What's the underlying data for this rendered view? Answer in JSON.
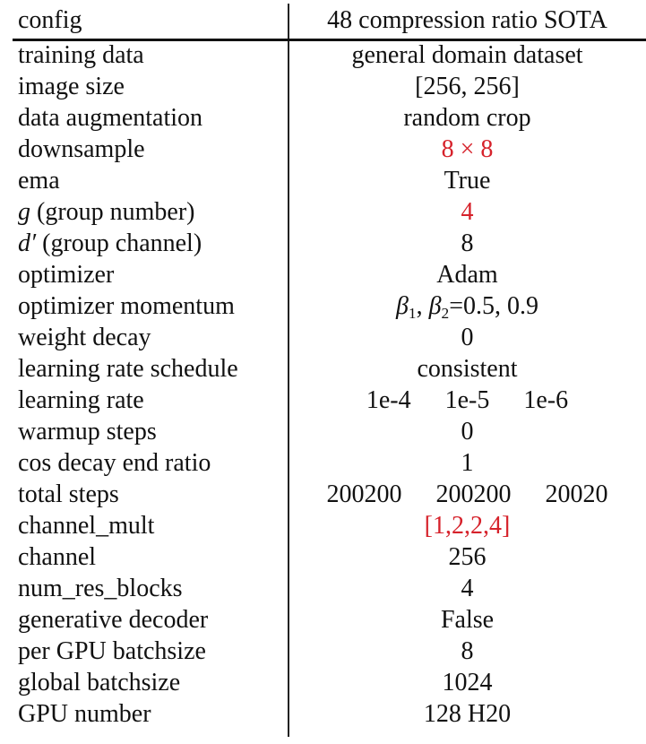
{
  "header": {
    "key": "config",
    "value": "48 compression ratio SOTA"
  },
  "rows": [
    {
      "key": "training data",
      "value": "general domain dataset"
    },
    {
      "key": "image size",
      "value": "[256, 256]"
    },
    {
      "key": "data augmentation",
      "value": "random crop"
    },
    {
      "key": "downsample",
      "value": "8 × 8"
    },
    {
      "key": "ema",
      "value": "True"
    },
    {
      "key_math": "g",
      "key": " (group number)",
      "value": "4"
    },
    {
      "key_math": "d′",
      "key": " (group channel)",
      "value": "8"
    },
    {
      "key": "optimizer",
      "value": "Adam"
    },
    {
      "key": "optimizer momentum",
      "beta1": "β",
      "sub1": "1",
      "sep": ", ",
      "beta2": "β",
      "sub2": "2",
      "value_rest": "=0.5, 0.9"
    },
    {
      "key": "weight decay",
      "value": "0"
    },
    {
      "key": "learning rate schedule",
      "value": "consistent"
    },
    {
      "key": "learning rate",
      "values": [
        "1e-4",
        "1e-5",
        "1e-6"
      ]
    },
    {
      "key": "warmup steps",
      "value": "0"
    },
    {
      "key": "cos decay end ratio",
      "value": "1"
    },
    {
      "key": "total steps",
      "values": [
        "200200",
        "200200",
        "20020"
      ]
    },
    {
      "key": "channel_mult",
      "value": "[1,2,2,4]"
    },
    {
      "key": "channel",
      "value": "256"
    },
    {
      "key": "num_res_blocks",
      "value": "4"
    },
    {
      "key": "generative decoder",
      "value": "False"
    },
    {
      "key": "per GPU batchsize",
      "value": "8"
    },
    {
      "key": "global batchsize",
      "value": "1024"
    },
    {
      "key": "GPU number",
      "value": "128 H20"
    }
  ],
  "colors": {
    "highlight": "#d6222b",
    "text": "#111111"
  }
}
